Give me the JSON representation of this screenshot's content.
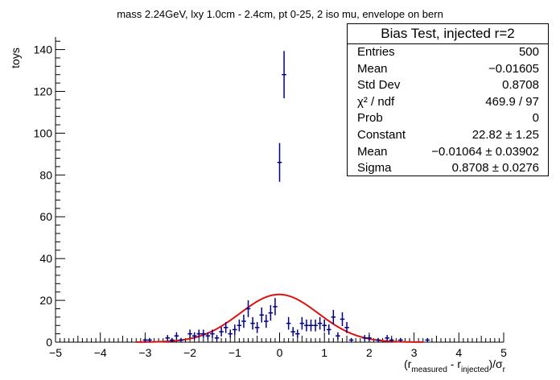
{
  "chart_data": {
    "type": "histogram",
    "title": "mass 2.24GeV, lxy 1.0cm - 2.4cm, pt 0-25, 2 iso mu, envelope on bern",
    "xlabel": "(r_measured - r_injected)/σ_r",
    "ylabel": "toys",
    "xlim": [
      -5,
      5
    ],
    "ylim": [
      0,
      146
    ],
    "x_ticks": [
      "−5",
      "−4",
      "−3",
      "−2",
      "−1",
      "0",
      "1",
      "2",
      "3",
      "4",
      "5"
    ],
    "y_ticks": [
      "0",
      "20",
      "40",
      "60",
      "80",
      "100",
      "120",
      "140"
    ],
    "bin_width": 0.1,
    "points": [
      {
        "x": -3.0,
        "y": 1
      },
      {
        "x": -2.9,
        "y": 1
      },
      {
        "x": -2.5,
        "y": 2
      },
      {
        "x": -2.4,
        "y": 1
      },
      {
        "x": -2.3,
        "y": 3
      },
      {
        "x": -2.2,
        "y": 1
      },
      {
        "x": -2.0,
        "y": 4
      },
      {
        "x": -1.9,
        "y": 3
      },
      {
        "x": -1.8,
        "y": 4
      },
      {
        "x": -1.7,
        "y": 4
      },
      {
        "x": -1.6,
        "y": 3
      },
      {
        "x": -1.5,
        "y": 4
      },
      {
        "x": -1.4,
        "y": 2
      },
      {
        "x": -1.3,
        "y": 5
      },
      {
        "x": -1.2,
        "y": 7
      },
      {
        "x": -1.1,
        "y": 4
      },
      {
        "x": -1.0,
        "y": 6
      },
      {
        "x": -0.9,
        "y": 8
      },
      {
        "x": -0.8,
        "y": 10
      },
      {
        "x": -0.7,
        "y": 16
      },
      {
        "x": -0.6,
        "y": 9
      },
      {
        "x": -0.5,
        "y": 7
      },
      {
        "x": -0.4,
        "y": 13
      },
      {
        "x": -0.3,
        "y": 10
      },
      {
        "x": -0.2,
        "y": 14
      },
      {
        "x": -0.1,
        "y": 17
      },
      {
        "x": 0.0,
        "y": 86
      },
      {
        "x": 0.1,
        "y": 128
      },
      {
        "x": 0.2,
        "y": 9
      },
      {
        "x": 0.3,
        "y": 5
      },
      {
        "x": 0.4,
        "y": 4
      },
      {
        "x": 0.5,
        "y": 9
      },
      {
        "x": 0.6,
        "y": 8
      },
      {
        "x": 0.7,
        "y": 8
      },
      {
        "x": 0.8,
        "y": 8
      },
      {
        "x": 0.9,
        "y": 9
      },
      {
        "x": 1.0,
        "y": 8
      },
      {
        "x": 1.1,
        "y": 6
      },
      {
        "x": 1.2,
        "y": 12
      },
      {
        "x": 1.3,
        "y": 3
      },
      {
        "x": 1.4,
        "y": 11
      },
      {
        "x": 1.5,
        "y": 7
      },
      {
        "x": 1.6,
        "y": 1
      },
      {
        "x": 1.9,
        "y": 2
      },
      {
        "x": 2.0,
        "y": 2
      },
      {
        "x": 2.2,
        "y": 1
      },
      {
        "x": 2.4,
        "y": 2
      },
      {
        "x": 2.5,
        "y": 1
      },
      {
        "x": 2.7,
        "y": 1
      },
      {
        "x": 3.3,
        "y": 1
      }
    ],
    "fit": {
      "function": "gaus",
      "constant": 22.82,
      "mean": -0.01064,
      "sigma": 0.8708,
      "color": "#dd1111"
    },
    "marker_color": "#000080",
    "stats_box": {
      "title": "Bias Test, injected r=2",
      "rows": [
        {
          "label": "Entries",
          "value": "500"
        },
        {
          "label": "Mean",
          "value": "−0.01605"
        },
        {
          "label": "Std Dev",
          "value": "0.8708"
        },
        {
          "label": "χ² / ndf",
          "value": "469.9 / 97"
        },
        {
          "label": "Prob",
          "value": "0"
        },
        {
          "label": "Constant",
          "value": "22.82 ± 1.25"
        },
        {
          "label": "Mean",
          "value": "−0.01064 ± 0.03902"
        },
        {
          "label": "Sigma",
          "value": "0.8708 ± 0.0276"
        }
      ]
    }
  }
}
